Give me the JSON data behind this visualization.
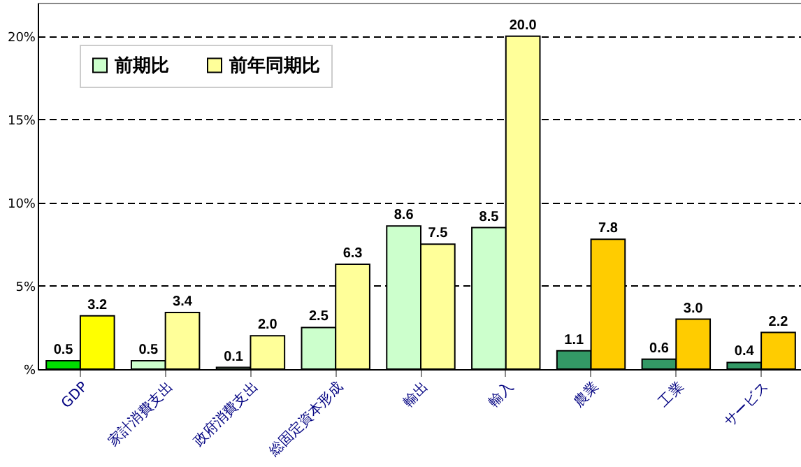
{
  "chart_data": {
    "type": "bar",
    "categories": [
      "GDP",
      "家計消費支出",
      "政府消費支出",
      "総固定資本形成",
      "輸出",
      "輸入",
      "農業",
      "工業",
      "サービス"
    ],
    "series": [
      {
        "name": "前期比",
        "color": "#ccffcc",
        "colors": [
          "#00dd00",
          "#ccffcc",
          "#ccffcc",
          "#ccffcc",
          "#ccffcc",
          "#ccffcc",
          "#339966",
          "#339966",
          "#339966"
        ],
        "values": [
          0.5,
          0.5,
          0.1,
          2.5,
          8.6,
          8.5,
          1.1,
          0.6,
          0.4
        ],
        "value_labels": [
          "0.5",
          "0.5",
          "0.1",
          "2.5",
          "8.6",
          "8.5",
          "1.1",
          "0.6",
          "0.4"
        ]
      },
      {
        "name": "前年同期比",
        "color": "#ffff99",
        "colors": [
          "#ffff00",
          "#ffff99",
          "#ffff99",
          "#ffff99",
          "#ffff99",
          "#ffff99",
          "#ffcc00",
          "#ffcc00",
          "#ffcc00"
        ],
        "values": [
          3.2,
          3.4,
          2,
          6.3,
          7.5,
          20,
          7.8,
          3,
          2.2
        ],
        "value_labels": [
          "3.2",
          "3.4",
          "2.0",
          "6.3",
          "7.5",
          "20.0",
          "7.8",
          "3.0",
          "2.2"
        ]
      }
    ],
    "ylim": [
      0,
      22
    ],
    "yticks": [
      {
        "value": 0,
        "label": "%"
      },
      {
        "value": 5,
        "label": "5%"
      },
      {
        "value": 10,
        "label": "10%"
      },
      {
        "value": 15,
        "label": "15%"
      },
      {
        "value": 20,
        "label": "20%"
      }
    ],
    "grid": "y",
    "legend": "top left"
  }
}
